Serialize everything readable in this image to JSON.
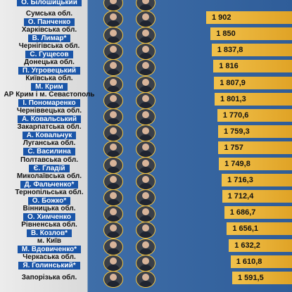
{
  "chart_data": {
    "type": "bar",
    "rows": [
      {
        "region": "",
        "person": "О. Білошицький",
        "value": null,
        "value_label": ""
      },
      {
        "region": "Сумська обл.",
        "person": "О. Панченко",
        "value": 1902,
        "value_label": "1 902"
      },
      {
        "region": "Харківська обл.",
        "person": "В. Лимар*",
        "value": 1850,
        "value_label": "1 850"
      },
      {
        "region": "Чернігівська обл.",
        "person": "С. Гущесов",
        "value": 1837.8,
        "value_label": "1 837,8"
      },
      {
        "region": "Донецька обл.",
        "person": "П. Угровецький",
        "value": 1816,
        "value_label": "1 816"
      },
      {
        "region": "Київська обл.",
        "person": "М. Крим",
        "value": 1807.9,
        "value_label": "1 807,9"
      },
      {
        "region": "АР Крим і м. Севастополь",
        "person": "І. Пономаренко",
        "value": 1801.3,
        "value_label": "1 801,3"
      },
      {
        "region": "Черніввецька обл.",
        "person": "А. Ковальський",
        "value": 1770.6,
        "value_label": "1 770,6"
      },
      {
        "region": "Закарпатська обл.",
        "person": "А. Ковальчук",
        "value": 1759.3,
        "value_label": "1 759,3"
      },
      {
        "region": "Луганська обл.",
        "person": "С. Василина",
        "value": 1757,
        "value_label": "1 757"
      },
      {
        "region": "Полтавська обл.",
        "person": "Є. Гладій",
        "value": 1749.8,
        "value_label": "1 749,8"
      },
      {
        "region": "Миколаївська обл.",
        "person": "Д. Фальченко*",
        "value": 1716.3,
        "value_label": "1 716,3"
      },
      {
        "region": "Тернопільська обл.",
        "person": "О. Божко*",
        "value": 1712.4,
        "value_label": "1 712,4"
      },
      {
        "region": "Вінницька обл.",
        "person": "О. Химченко",
        "value": 1686.7,
        "value_label": "1 686,7"
      },
      {
        "region": "Рівненська обл.",
        "person": "В. Козлов*",
        "value": 1656.1,
        "value_label": "1 656,1"
      },
      {
        "region": "м. Київ",
        "person": "М. Вдовиченко*",
        "value": 1632.2,
        "value_label": "1 632,2"
      },
      {
        "region": "Черкаська обл.",
        "person": "Я. Голинський*",
        "value": 1610.8,
        "value_label": "1 610,8"
      },
      {
        "region": "Запорізька обл.",
        "person": "",
        "value": 1591.5,
        "value_label": "1 591,5"
      }
    ]
  }
}
